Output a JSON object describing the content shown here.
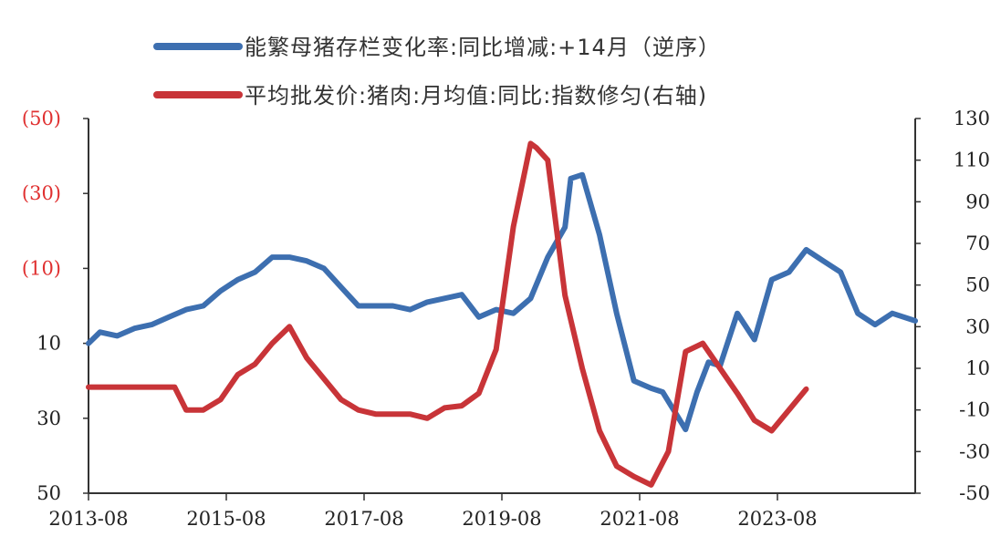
{
  "chart_data": {
    "type": "line",
    "legend_position": "top",
    "grid": false,
    "left_axis": {
      "reversed": true,
      "ylim": [
        -50,
        50
      ],
      "ticks": [
        -50,
        -30,
        -10,
        10,
        30,
        50
      ],
      "tick_labels": [
        "(50)",
        "(30)",
        "(10)",
        "10",
        "30",
        "50"
      ],
      "negative_color": "#e03030",
      "positive_color": "#222222"
    },
    "right_axis": {
      "ylim": [
        -50,
        130
      ],
      "ticks": [
        -50,
        -30,
        -10,
        10,
        30,
        50,
        70,
        90,
        110,
        130
      ],
      "tick_labels": [
        "-50",
        "-30",
        "-10",
        "10",
        "30",
        "50",
        "70",
        "90",
        "110",
        "130"
      ]
    },
    "x_axis": {
      "range": [
        "2013-08",
        "2025-08"
      ],
      "tick_labels": [
        "2013-08",
        "2015-08",
        "2017-08",
        "2019-08",
        "2021-08",
        "2023-08"
      ]
    },
    "series": [
      {
        "name": "能繁母猪存栏变化率:同比增减:+14月（逆序）",
        "axis": "left",
        "color": "#3d6fb0",
        "x": [
          "2013-08",
          "2013-10",
          "2014-01",
          "2014-04",
          "2014-07",
          "2014-10",
          "2015-01",
          "2015-04",
          "2015-07",
          "2015-10",
          "2016-01",
          "2016-04",
          "2016-07",
          "2016-10",
          "2017-01",
          "2017-04",
          "2017-07",
          "2017-10",
          "2018-01",
          "2018-04",
          "2018-07",
          "2018-10",
          "2019-01",
          "2019-04",
          "2019-07",
          "2019-10",
          "2020-01",
          "2020-04",
          "2020-07",
          "2020-08",
          "2020-10",
          "2021-01",
          "2021-04",
          "2021-07",
          "2021-10",
          "2021-12",
          "2022-02",
          "2022-04",
          "2022-06",
          "2022-08",
          "2022-10",
          "2023-01",
          "2023-04",
          "2023-07",
          "2023-10",
          "2024-01",
          "2024-04",
          "2024-07",
          "2024-10",
          "2025-01",
          "2025-04",
          "2025-08"
        ],
        "values": [
          10,
          7,
          8,
          6,
          5,
          3,
          1,
          0,
          -4,
          -7,
          -9,
          -13,
          -13,
          -12,
          -10,
          -5,
          0,
          0,
          0,
          1,
          -1,
          -2,
          -3,
          3,
          1,
          2,
          -2,
          -13,
          -21,
          -34,
          -35,
          -19,
          2,
          20,
          22,
          23,
          28,
          33,
          23,
          15,
          16,
          2,
          9,
          -7,
          -9,
          -15,
          -12,
          -9,
          2,
          5,
          2,
          4
        ]
      },
      {
        "name": "平均批发价:猪肉:月均值:同比:指数修匀(右轴)",
        "axis": "right",
        "color": "#c83438",
        "x": [
          "2013-08",
          "2014-01",
          "2014-06",
          "2014-11",
          "2015-01",
          "2015-04",
          "2015-07",
          "2015-10",
          "2016-01",
          "2016-04",
          "2016-07",
          "2016-10",
          "2017-01",
          "2017-04",
          "2017-07",
          "2017-10",
          "2018-01",
          "2018-04",
          "2018-07",
          "2018-10",
          "2019-01",
          "2019-04",
          "2019-07",
          "2019-10",
          "2020-01",
          "2020-02",
          "2020-04",
          "2020-07",
          "2020-10",
          "2021-01",
          "2021-04",
          "2021-07",
          "2021-10",
          "2022-01",
          "2022-04",
          "2022-07",
          "2022-10",
          "2023-01",
          "2023-04",
          "2023-07",
          "2023-10",
          "2024-01",
          "2024-04",
          "2024-07",
          "2024-10",
          "2025-01",
          "2025-04",
          "2025-08"
        ],
        "values": [
          1,
          1,
          1,
          1,
          -10,
          -10,
          -5,
          7,
          12,
          22,
          30,
          15,
          5,
          -5,
          -10,
          -12,
          -12,
          -12,
          -14,
          -9,
          -8,
          -2,
          19,
          78,
          118,
          116,
          110,
          45,
          10,
          -20,
          -37,
          -42,
          -46,
          -30,
          18,
          22,
          10,
          -2,
          -15,
          -20,
          -10,
          0,
          null,
          null,
          null,
          null,
          null,
          null
        ]
      }
    ]
  }
}
